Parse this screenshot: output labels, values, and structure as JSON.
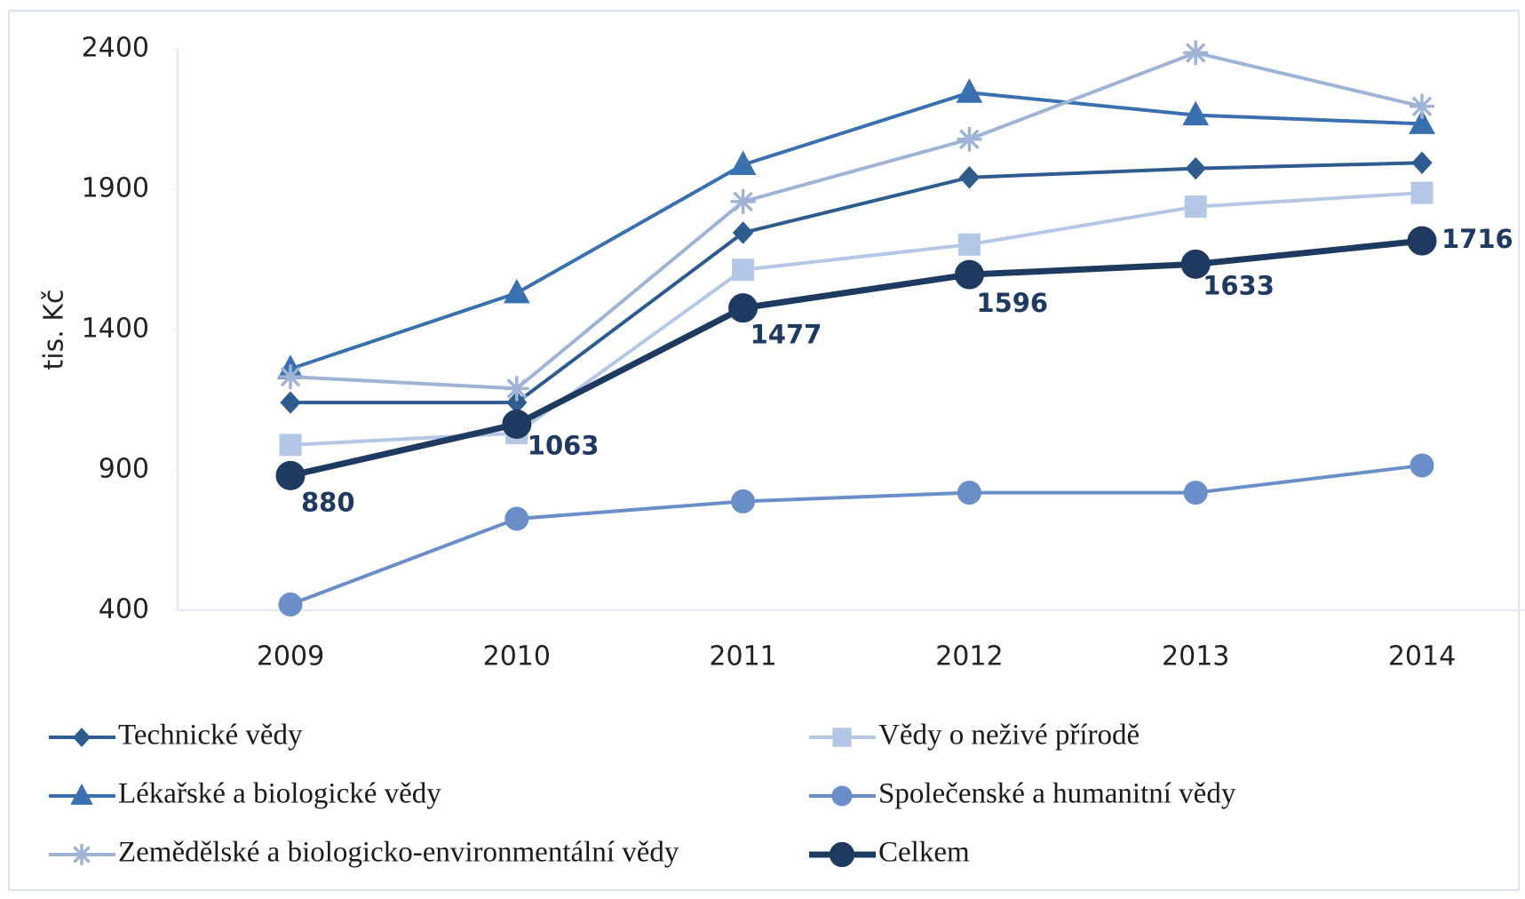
{
  "chart_data": {
    "type": "line",
    "y_label": "tis. Kč",
    "categories": [
      "2009",
      "2010",
      "2011",
      "2012",
      "2013",
      "2014"
    ],
    "ylim": [
      400,
      2400
    ],
    "yticks": [
      400,
      900,
      1400,
      1900,
      2400
    ],
    "series": [
      {
        "name": "Technické vědy",
        "color": "#2e5c8f",
        "marker": "diamond",
        "values": [
          1140,
          1140,
          1745,
          1942,
          1974,
          1994
        ]
      },
      {
        "name": "Vědy o neživé přírodě",
        "color": "#b4c7e7",
        "marker": "square",
        "values": [
          989,
          1031,
          1613,
          1703,
          1838,
          1887
        ]
      },
      {
        "name": "Lékařské a biologické vědy",
        "color": "#3a6fb0",
        "marker": "triangle",
        "values": [
          1260,
          1530,
          1987,
          2244,
          2164,
          2133
        ]
      },
      {
        "name": "Společenské a humanitní vědy",
        "color": "#6a8fc8",
        "marker": "circle",
        "values": [
          421,
          726,
          788,
          819,
          819,
          916
        ]
      },
      {
        "name": "Zemědělské a biologicko-environmentální vědy",
        "color": "#9fb3d6",
        "marker": "star",
        "values": [
          1232,
          1190,
          1856,
          2078,
          2386,
          2195
        ]
      },
      {
        "name": "Celkem",
        "color": "#1f3a60",
        "marker": "bigcircle",
        "values": [
          880,
          1063,
          1477,
          1596,
          1633,
          1716
        ],
        "show_labels": true
      }
    ]
  }
}
